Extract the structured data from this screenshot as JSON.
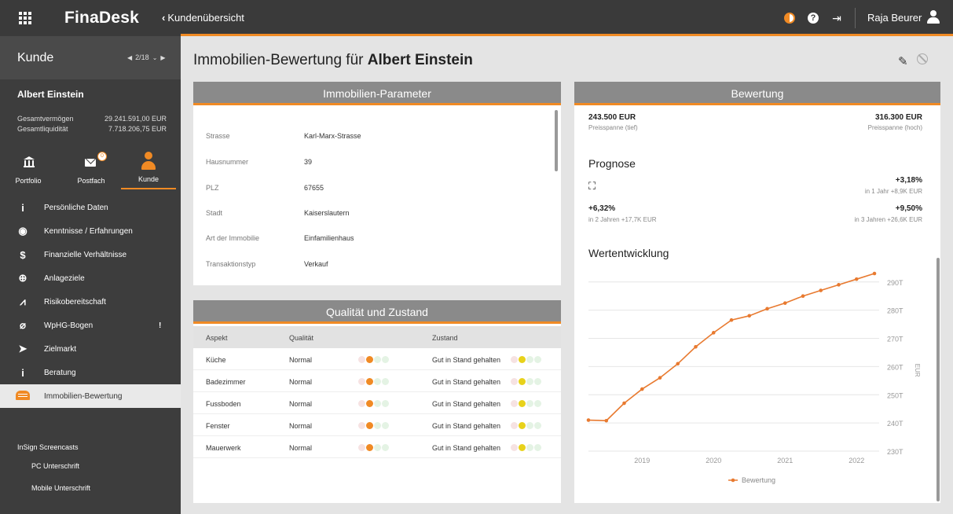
{
  "topbar": {
    "brand": "FinaDesk",
    "back_label": "Kundenübersicht",
    "user_name": "Raja Beurer"
  },
  "sidebar": {
    "title": "Kunde",
    "pager": "2/18",
    "client_name": "Albert Einstein",
    "finances": [
      {
        "label": "Gesamtvermögen",
        "value": "29.241.591,00 EUR"
      },
      {
        "label": "Gesamtliquidität",
        "value": "7.718.206,75 EUR"
      }
    ],
    "tabs": [
      {
        "label": "Portfolio",
        "icon": "bank-icon"
      },
      {
        "label": "Postfach",
        "icon": "mail-icon",
        "badge": "0"
      },
      {
        "label": "Kunde",
        "icon": "person-icon",
        "active": true
      }
    ],
    "items": [
      {
        "label": "Persönliche Daten",
        "icon": "info-icon",
        "glyph": "i"
      },
      {
        "label": "Kenntnisse / Erfahrungen",
        "icon": "brain-icon",
        "glyph": "◉"
      },
      {
        "label": "Finanzielle Verhältnisse",
        "icon": "dollar-icon",
        "glyph": "$"
      },
      {
        "label": "Anlageziele",
        "icon": "target-icon",
        "glyph": "⊕"
      },
      {
        "label": "Risikobereitschaft",
        "icon": "area-chart-icon",
        "glyph": "⩘"
      },
      {
        "label": "WpHG-Bogen",
        "icon": "paperclip-icon",
        "glyph": "⌀",
        "warn": "!"
      },
      {
        "label": "Zielmarkt",
        "icon": "send-icon",
        "glyph": "➤"
      },
      {
        "label": "Beratung",
        "icon": "info-icon",
        "glyph": "i"
      },
      {
        "label": "Immobilien-Bewertung",
        "icon": "house-icon",
        "active": true
      }
    ],
    "screencasts": {
      "title": "InSign Screencasts",
      "links": [
        "PC Unterschrift",
        "Mobile Unterschrift"
      ]
    }
  },
  "main": {
    "title_prefix": "Immobilien-Bewertung für",
    "title_name": "Albert Einstein"
  },
  "params": {
    "heading": "Immobilien-Parameter",
    "rows": [
      {
        "key": "Strasse",
        "value": "Karl-Marx-Strasse"
      },
      {
        "key": "Hausnummer",
        "value": "39"
      },
      {
        "key": "PLZ",
        "value": "67655"
      },
      {
        "key": "Stadt",
        "value": "Kaiserslautern"
      },
      {
        "key": "Art der Immobilie",
        "value": "Einfamilienhaus"
      },
      {
        "key": "Transaktionstyp",
        "value": "Verkauf"
      }
    ]
  },
  "quality": {
    "heading": "Qualität und Zustand",
    "columns": [
      "Aspekt",
      "Qualität",
      "Zustand"
    ],
    "rows": [
      {
        "aspect": "Küche",
        "quality": "Normal",
        "condition": "Gut in Stand gehalten"
      },
      {
        "aspect": "Badezimmer",
        "quality": "Normal",
        "condition": "Gut in Stand gehalten"
      },
      {
        "aspect": "Fussboden",
        "quality": "Normal",
        "condition": "Gut in Stand gehalten"
      },
      {
        "aspect": "Fenster",
        "quality": "Normal",
        "condition": "Gut in Stand gehalten"
      },
      {
        "aspect": "Mauerwerk",
        "quality": "Normal",
        "condition": "Gut in Stand gehalten"
      }
    ],
    "quality_level": 2,
    "condition_level": 2,
    "quality_color": "#f08a24",
    "condition_color": "#e8d21a"
  },
  "valuation": {
    "heading": "Bewertung",
    "low_value": "243.500 EUR",
    "low_label": "Preisspanne (tief)",
    "high_value": "316.300 EUR",
    "high_label": "Preisspanne (hoch)",
    "forecast_title": "Prognose",
    "forecasts": [
      {
        "pct": "+3,18%",
        "sub": "in 1 Jahr +8,9K EUR"
      },
      {
        "pct": "+6,32%",
        "sub": "in 2 Jahren +17,7K EUR"
      },
      {
        "pct": "+9,50%",
        "sub": "in 3 Jahren +26,6K EUR"
      }
    ],
    "trend_title": "Wertentwicklung"
  },
  "chart_data": {
    "type": "line",
    "title": "Wertentwicklung",
    "ylabel": "EUR",
    "ylim": [
      230000,
      293000
    ],
    "xlim": [
      2018.25,
      2022.25
    ],
    "yticks": [
      230000,
      240000,
      250000,
      260000,
      270000,
      280000,
      290000
    ],
    "ytick_labels": [
      "230T",
      "240T",
      "250T",
      "260T",
      "270T",
      "280T",
      "290T"
    ],
    "xticks": [
      2019,
      2020,
      2021,
      2022
    ],
    "xtick_labels": [
      "2019",
      "2020",
      "2021",
      "2022"
    ],
    "grid": true,
    "legend": "bottom",
    "series": [
      {
        "name": "Bewertung",
        "color": "#e87a30",
        "x": [
          2018.25,
          2018.5,
          2018.75,
          2019.0,
          2019.25,
          2019.5,
          2019.75,
          2020.0,
          2020.25,
          2020.5,
          2020.75,
          2021.0,
          2021.25,
          2021.5,
          2021.75,
          2022.0,
          2022.25
        ],
        "y": [
          241000,
          240800,
          247000,
          252000,
          256000,
          261000,
          267000,
          272000,
          276500,
          278000,
          280500,
          282500,
          285000,
          287000,
          289000,
          291000,
          293000
        ]
      }
    ]
  }
}
